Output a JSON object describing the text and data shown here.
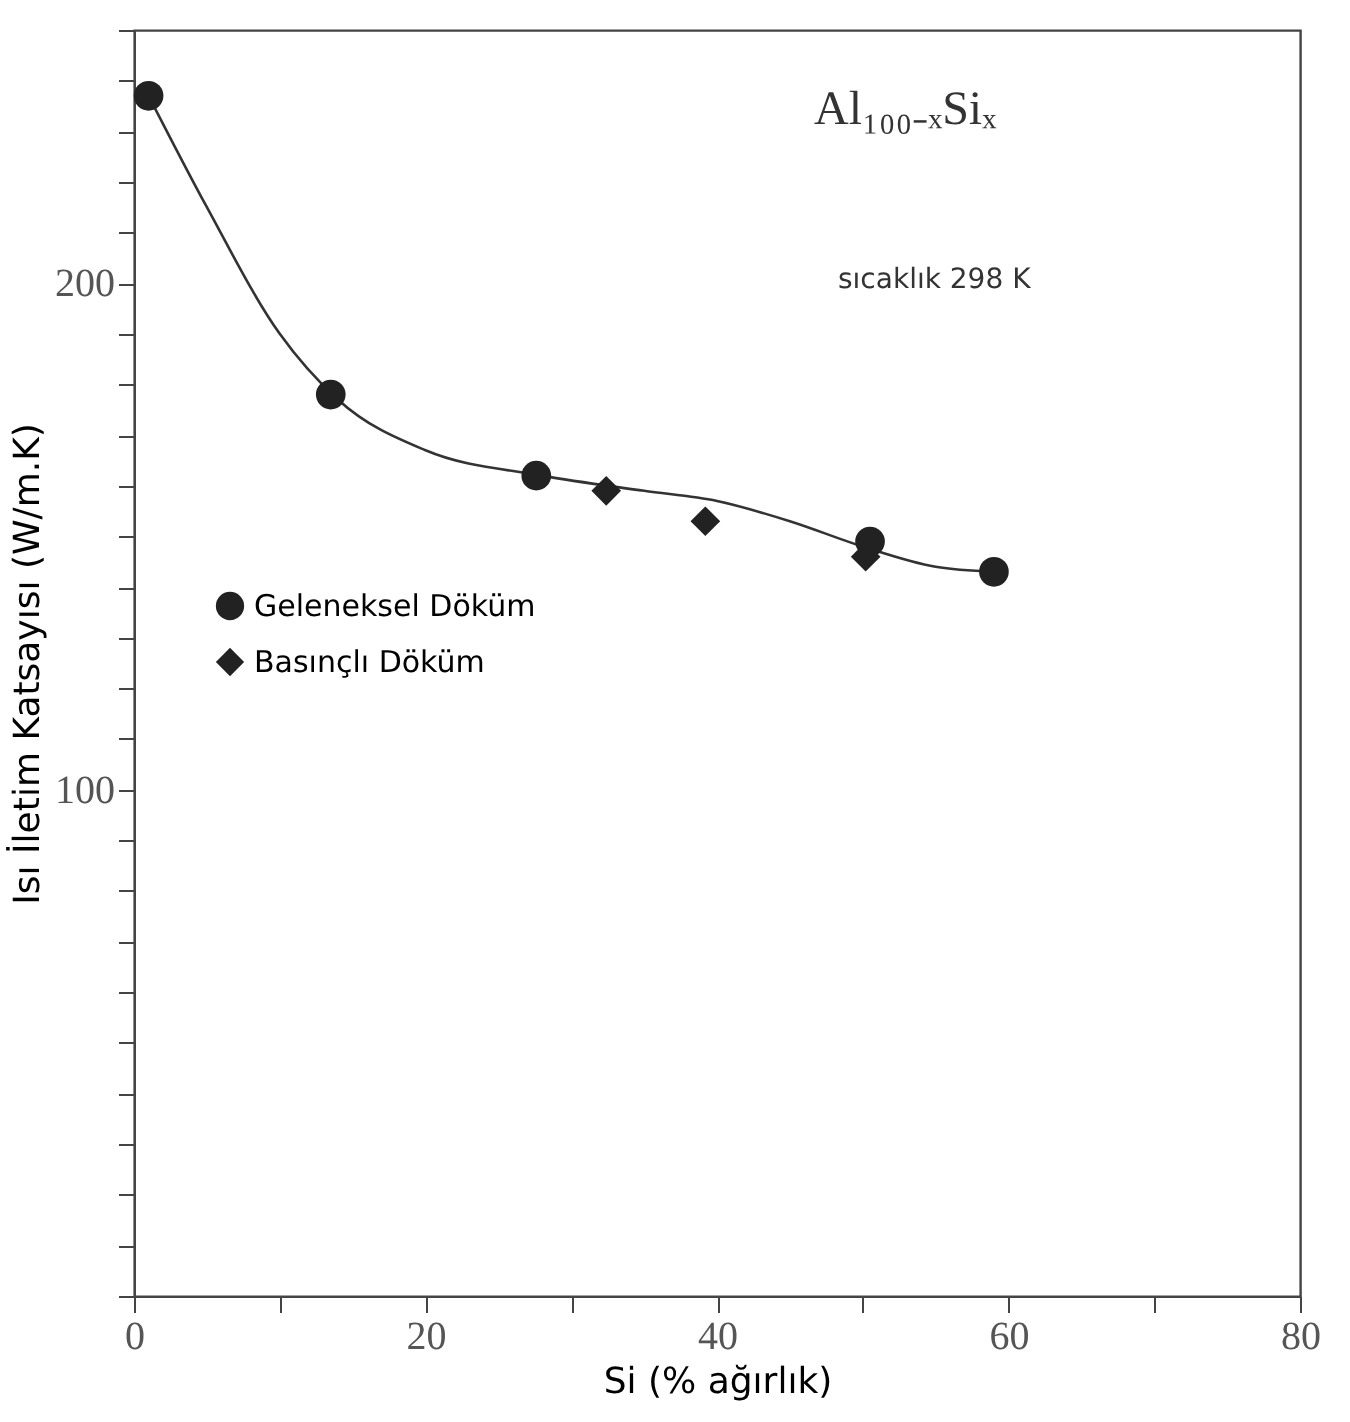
{
  "chart_data": {
    "type": "scatter",
    "xlabel": "Si (% ağırlık)",
    "ylabel": "Isı İletim Katsayısı (W/m.K)",
    "annotations": [
      "Al₁₀₀₋ₓSiₓ",
      "sıcaklık 298 K"
    ],
    "xlim": [
      0,
      80
    ],
    "ylim": [
      0,
      250
    ],
    "xticks": [
      0,
      {
        "value": 10,
        "label": null
      },
      20,
      {
        "value": 30,
        "label": null
      },
      40,
      {
        "value": 50,
        "label": null
      },
      60,
      {
        "value": 70,
        "label": null
      },
      80
    ],
    "yticks": [
      {
        "value": 0,
        "label": null
      },
      {
        "value": 10,
        "label": null
      },
      {
        "value": 20,
        "label": null
      },
      {
        "value": 30,
        "label": null
      },
      {
        "value": 40,
        "label": null
      },
      {
        "value": 50,
        "label": null
      },
      {
        "value": 60,
        "label": null
      },
      {
        "value": 70,
        "label": null
      },
      {
        "value": 80,
        "label": null
      },
      {
        "value": 90,
        "label": null
      },
      100,
      {
        "value": 110,
        "label": null
      },
      {
        "value": 120,
        "label": null
      },
      {
        "value": 130,
        "label": null
      },
      {
        "value": 140,
        "label": null
      },
      {
        "value": 150,
        "label": null
      },
      {
        "value": 160,
        "label": null
      },
      {
        "value": 170,
        "label": null
      },
      {
        "value": 180,
        "label": null
      },
      {
        "value": 190,
        "label": null
      },
      200,
      {
        "value": 210,
        "label": null
      },
      {
        "value": 220,
        "label": null
      },
      {
        "value": 230,
        "label": null
      },
      {
        "value": 240,
        "label": null
      },
      {
        "value": 250,
        "label": null
      }
    ],
    "grid": false,
    "legend": "left",
    "series": [
      {
        "type": "line",
        "color": "#333333",
        "marker": "none",
        "line_style": "solid",
        "x": [
          1,
          5,
          10,
          14,
          20,
          28,
          35,
          40,
          45,
          50,
          55,
          59
        ],
        "values": [
          237,
          215,
          190,
          177,
          167,
          162,
          159,
          157,
          153,
          148,
          144,
          143
        ]
      },
      {
        "name": "Geleneksel Döküm",
        "color": "#222222",
        "marker": "circle",
        "x": [
          1,
          13.5,
          27.6,
          50.5,
          59
        ],
        "values": [
          237,
          178,
          162,
          149,
          143
        ]
      },
      {
        "name": "Basınçlı Döküm",
        "color": "#222222",
        "marker": "diamond",
        "x": [
          32.4,
          39.2,
          50.2
        ],
        "values": [
          159,
          153,
          146
        ]
      }
    ]
  }
}
